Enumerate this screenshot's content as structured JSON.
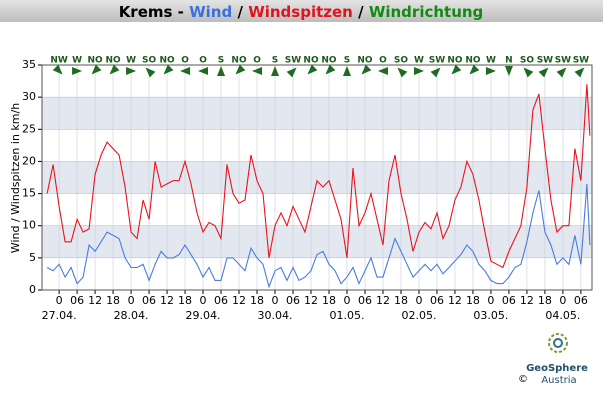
{
  "chart_data": {
    "type": "line",
    "title_parts": [
      {
        "text": "Krems -",
        "color": "#000000"
      },
      {
        "text": "Wind",
        "color": "#3a6fdf"
      },
      {
        "text": "/",
        "color": "#000000"
      },
      {
        "text": "Windspitzen",
        "color": "#e0141e"
      },
      {
        "text": "/",
        "color": "#000000"
      },
      {
        "text": "Windrichtung",
        "color": "#138a13"
      }
    ],
    "y_label": "Wind / Windspitzen in km/h",
    "ylim": [
      0,
      35
    ],
    "yticks": [
      0,
      5,
      10,
      15,
      20,
      25,
      30,
      35
    ],
    "xlim": [
      -5.7,
      177.7
    ],
    "xticks": [
      0,
      {
        "value": 6,
        "label": "06"
      },
      12,
      18,
      {
        "value": 24,
        "label": "0"
      },
      {
        "value": 30,
        "label": "06"
      },
      {
        "value": 36,
        "label": "12"
      },
      {
        "value": 42,
        "label": "18"
      },
      {
        "value": 48,
        "label": "0"
      },
      {
        "value": 54,
        "label": "06"
      },
      {
        "value": 60,
        "label": "12"
      },
      {
        "value": 66,
        "label": "18"
      },
      {
        "value": 72,
        "label": "0"
      },
      {
        "value": 78,
        "label": "06"
      },
      {
        "value": 84,
        "label": "12"
      },
      {
        "value": 90,
        "label": "18"
      },
      {
        "value": 96,
        "label": "0"
      },
      {
        "value": 102,
        "label": "06"
      },
      {
        "value": 108,
        "label": "12"
      },
      {
        "value": 114,
        "label": "18"
      },
      {
        "value": 120,
        "label": "0"
      },
      {
        "value": 126,
        "label": "06"
      },
      {
        "value": 132,
        "label": "12"
      },
      {
        "value": 138,
        "label": "18"
      },
      {
        "value": 144,
        "label": "0"
      },
      {
        "value": 150,
        "label": "06"
      },
      {
        "value": 156,
        "label": "12"
      },
      {
        "value": 162,
        "label": "18"
      },
      {
        "value": 168,
        "label": "0"
      },
      {
        "value": 174,
        "label": "06"
      }
    ],
    "date_labels": [
      {
        "value": 0,
        "label": "27.04."
      },
      {
        "value": 24,
        "label": "28.04."
      },
      {
        "value": 48,
        "label": "29.04."
      },
      {
        "value": 72,
        "label": "30.04."
      },
      {
        "value": 96,
        "label": "01.05."
      },
      {
        "value": 120,
        "label": "02.05."
      },
      {
        "value": 144,
        "label": "03.05."
      },
      {
        "value": 168,
        "label": "04.05."
      }
    ],
    "directions": [
      "NW",
      "W",
      "NO",
      "NO",
      "W",
      "SO",
      "NO",
      "O",
      "O",
      "S",
      "NO",
      "O",
      "S",
      "SW",
      "NO",
      "NO",
      "S",
      "NO",
      "O",
      "SO",
      "W",
      "SW",
      "NO",
      "NO",
      "W",
      "N",
      "SO",
      "SW",
      "SW",
      "SW"
    ],
    "grid": true,
    "x": [
      -4,
      -2,
      0,
      2,
      4,
      6,
      8,
      10,
      12,
      14,
      16,
      18,
      20,
      22,
      24,
      26,
      28,
      30,
      32,
      34,
      36,
      38,
      40,
      42,
      44,
      46,
      48,
      50,
      52,
      54,
      56,
      58,
      60,
      62,
      64,
      66,
      68,
      70,
      72,
      74,
      76,
      78,
      80,
      82,
      84,
      86,
      88,
      90,
      92,
      94,
      96,
      98,
      100,
      102,
      104,
      106,
      108,
      110,
      112,
      114,
      116,
      118,
      120,
      122,
      124,
      126,
      128,
      130,
      132,
      134,
      136,
      138,
      140,
      142,
      144,
      146,
      148,
      150,
      152,
      154,
      156,
      158,
      160,
      162,
      164,
      166,
      168,
      170,
      172,
      174,
      176,
      177
    ],
    "series": [
      {
        "name": "Wind",
        "color": "#4a7be0",
        "values": [
          3.5,
          3,
          4,
          2,
          3.5,
          1,
          2,
          7,
          6,
          7.5,
          9,
          8.5,
          8,
          5,
          3.5,
          3.5,
          4,
          1.5,
          4,
          6,
          5,
          5,
          5.5,
          7,
          5.5,
          4,
          2,
          3.5,
          1.5,
          1.5,
          5,
          5,
          4,
          3,
          6.5,
          5,
          4,
          0.5,
          3,
          3.5,
          1.5,
          3.5,
          1.5,
          2,
          3,
          5.5,
          6,
          4,
          3,
          1,
          2,
          3.5,
          1,
          3,
          5,
          2,
          2,
          5,
          8,
          6,
          4,
          2,
          3,
          4,
          3,
          4,
          2.5,
          3.5,
          4.5,
          5.5,
          7,
          6,
          4,
          3,
          1.5,
          1,
          1,
          2,
          3.5,
          4,
          7.5,
          12,
          15.5,
          9,
          7,
          4,
          5,
          4,
          8.5,
          4,
          16.5,
          7
        ]
      },
      {
        "name": "Windspitzen",
        "color": "#e8141e",
        "values": [
          15,
          19.5,
          13,
          7.5,
          7.5,
          11,
          9,
          9.5,
          18,
          21,
          23,
          22,
          21,
          16,
          9,
          8,
          14,
          11,
          20,
          16,
          16.5,
          17,
          17,
          20,
          16.5,
          12,
          9,
          10.5,
          10,
          8,
          19.5,
          15,
          13.5,
          14,
          21,
          17,
          15,
          5,
          10,
          12,
          10,
          13,
          11,
          9,
          13,
          17,
          16,
          17,
          14,
          11,
          5,
          19,
          10,
          12,
          15,
          11,
          7,
          17,
          21,
          15,
          11,
          6,
          9,
          10.5,
          9.5,
          12,
          8,
          10,
          14,
          16,
          20,
          18,
          14,
          9,
          4.5,
          4,
          3.5,
          6,
          8,
          10,
          16,
          28,
          30.5,
          22,
          14,
          9,
          10,
          10,
          22,
          17,
          32,
          24
        ]
      }
    ],
    "logo": {
      "name": "GeoSphere",
      "sub": "Austria",
      "copyright": "©"
    }
  }
}
